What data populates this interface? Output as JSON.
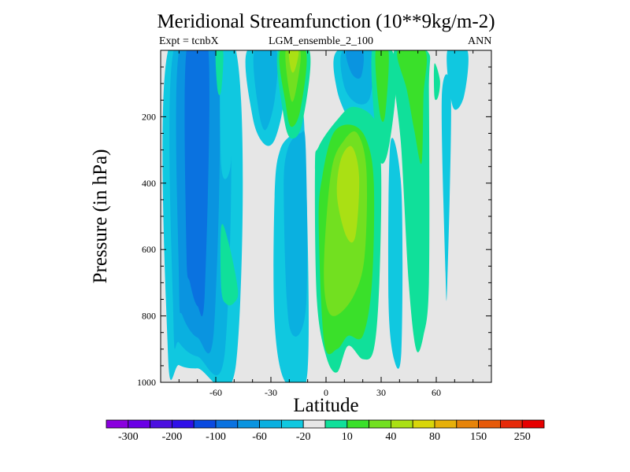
{
  "chart_data": {
    "type": "heatmap",
    "title": "Meridional Streamfunction (10**9kg/m-2)",
    "subtitle_left": "Expt = tcnbX",
    "subtitle_center": "LGM_ensemble_2_100",
    "subtitle_right": "ANN",
    "xlabel": "Latitude",
    "ylabel": "Pressure (in hPa)",
    "xlim": [
      -90,
      90
    ],
    "ylim": [
      1000,
      0
    ],
    "x_ticks": [
      -60,
      -30,
      0,
      30,
      60
    ],
    "y_ticks": [
      200,
      400,
      600,
      800,
      1000
    ],
    "background_color": "#e6e6e6",
    "colorbar": {
      "colors": [
        "#8a00de",
        "#6a00e6",
        "#4c10e0",
        "#2f10e8",
        "#0a4ae0",
        "#0a72e0",
        "#0a94e0",
        "#0ab0e0",
        "#10c8e0",
        "#e6e6e6",
        "#10e09a",
        "#3ae02a",
        "#72e020",
        "#aae014",
        "#d8d60a",
        "#e6b00a",
        "#e6840a",
        "#e65a0a",
        "#e62a0a",
        "#e60000"
      ],
      "tick_labels": [
        "-300",
        "-200",
        "-100",
        "-60",
        "-20",
        "10",
        "40",
        "80",
        "150",
        "250"
      ]
    },
    "contours": [
      {
        "level": "-20",
        "color": "#10c8e0",
        "polygon": [
          [
            -86,
            2
          ],
          [
            -49,
            2
          ],
          [
            -49,
            945
          ],
          [
            -70,
            958
          ],
          [
            -80,
            948
          ],
          [
            -86,
            915
          ]
        ]
      },
      {
        "level": "-60",
        "color": "#0ab0e0",
        "polygon": [
          [
            -83,
            2
          ],
          [
            -54,
            2
          ],
          [
            -55,
            905
          ],
          [
            -70,
            922
          ],
          [
            -80,
            880
          ],
          [
            -83,
            820
          ]
        ]
      },
      {
        "level": "-100",
        "color": "#0a94e0",
        "polygon": [
          [
            -80,
            2
          ],
          [
            -59,
            2
          ],
          [
            -61,
            840
          ],
          [
            -70,
            865
          ],
          [
            -78,
            800
          ],
          [
            -80,
            700
          ]
        ]
      },
      {
        "level": "-150",
        "color": "#0a72e0",
        "polygon": [
          [
            -76,
            2
          ],
          [
            -64,
            2
          ],
          [
            -66,
            730
          ],
          [
            -70,
            770
          ],
          [
            -74,
            700
          ],
          [
            -76,
            600
          ]
        ]
      },
      {
        "level": "-20",
        "color": "#10c8e0",
        "polygon": [
          [
            -50,
            2
          ],
          [
            -57,
            2
          ],
          [
            -57,
            350
          ],
          [
            -52,
            350
          ],
          [
            -50,
            100
          ]
        ]
      },
      {
        "level": "-20",
        "color": "#10c8e0",
        "polygon": [
          [
            -43,
            2
          ],
          [
            -24,
            2
          ],
          [
            -23,
            150
          ],
          [
            -28,
            270
          ],
          [
            -34,
            280
          ],
          [
            -40,
            200
          ]
        ]
      },
      {
        "level": "-60",
        "color": "#0ab0e0",
        "polygon": [
          [
            -39,
            2
          ],
          [
            -27,
            2
          ],
          [
            -28,
            150
          ],
          [
            -33,
            240
          ],
          [
            -37,
            170
          ]
        ]
      },
      {
        "level": "-20",
        "color": "#10c8e0",
        "polygon": [
          [
            -28,
            440
          ],
          [
            -25,
            300
          ],
          [
            -17,
            245
          ],
          [
            -12,
            210
          ],
          [
            -10,
            960
          ],
          [
            -22,
            1000
          ],
          [
            -28,
            820
          ]
        ]
      },
      {
        "level": "-60",
        "color": "#0ab0e0",
        "polygon": [
          [
            -23,
            440
          ],
          [
            -21,
            300
          ],
          [
            -14,
            250
          ],
          [
            -11,
            300
          ],
          [
            -11,
            780
          ],
          [
            -20,
            830
          ]
        ]
      },
      {
        "level": "-20",
        "color": "#10c8e0",
        "polygon": [
          [
            6,
            2
          ],
          [
            28,
            2
          ],
          [
            28,
            180
          ],
          [
            20,
            250
          ],
          [
            14,
            225
          ],
          [
            6,
            120
          ]
        ]
      },
      {
        "level": "-60",
        "color": "#0ab0e0",
        "polygon": [
          [
            9,
            2
          ],
          [
            25,
            2
          ],
          [
            24,
            140
          ],
          [
            17,
            160
          ],
          [
            10,
            110
          ]
        ]
      },
      {
        "level": "-100",
        "color": "#0a94e0",
        "polygon": [
          [
            11,
            2
          ],
          [
            20,
            2
          ],
          [
            19,
            80
          ],
          [
            14,
            70
          ]
        ]
      },
      {
        "level": "-20",
        "color": "#10c8e0",
        "polygon": [
          [
            35,
            280
          ],
          [
            41,
            420
          ],
          [
            41,
            905
          ],
          [
            37,
            930
          ],
          [
            34,
            750
          ]
        ]
      },
      {
        "level": "-20",
        "color": "#10c8e0",
        "polygon": [
          [
            66,
            2
          ],
          [
            77,
            2
          ],
          [
            75,
            140
          ],
          [
            69,
            170
          ]
        ]
      },
      {
        "level": "-20",
        "color": "#10c8e0",
        "polygon": [
          [
            63,
            140
          ],
          [
            68,
            140
          ],
          [
            66,
            700
          ],
          [
            65,
            670
          ]
        ]
      },
      {
        "level": "10",
        "color": "#10e09a",
        "polygon": [
          [
            -57,
            530
          ],
          [
            -53,
            580
          ],
          [
            -48,
            720
          ],
          [
            -50,
            760
          ],
          [
            -54,
            765
          ],
          [
            -57,
            720
          ]
        ]
      },
      {
        "level": "10",
        "color": "#10e09a",
        "polygon": [
          [
            -26,
            2
          ],
          [
            -9,
            2
          ],
          [
            -13,
            220
          ],
          [
            -19,
            265
          ],
          [
            -23,
            200
          ]
        ]
      },
      {
        "level": "10",
        "color": "#10e09a",
        "polygon": [
          [
            25,
            2
          ],
          [
            36,
            2
          ],
          [
            38,
            120
          ],
          [
            33,
            320
          ],
          [
            28,
            300
          ]
        ]
      },
      {
        "level": "10",
        "color": "#10e09a",
        "polygon": [
          [
            37,
            2
          ],
          [
            55,
            2
          ],
          [
            56,
            130
          ],
          [
            56,
            700
          ],
          [
            53,
            860
          ],
          [
            49,
            900
          ],
          [
            45,
            700
          ],
          [
            41,
            300
          ]
        ]
      },
      {
        "level": "10",
        "color": "#10e09a",
        "polygon": [
          [
            -6,
            360
          ],
          [
            -4,
            290
          ],
          [
            6,
            210
          ],
          [
            15,
            170
          ],
          [
            27,
            215
          ],
          [
            30,
            360
          ],
          [
            29,
            700
          ],
          [
            26,
            900
          ],
          [
            20,
            930
          ],
          [
            12,
            890
          ],
          [
            6,
            970
          ],
          [
            0,
            920
          ],
          [
            -5,
            750
          ]
        ]
      },
      {
        "level": "10",
        "color": "#10e09a",
        "polygon": [
          [
            59,
            40
          ],
          [
            62,
            90
          ],
          [
            61,
            140
          ],
          [
            59,
            140
          ]
        ]
      },
      {
        "level": "10",
        "color": "#10e09a",
        "polygon": [
          [
            -60,
            2
          ],
          [
            -56,
            2
          ],
          [
            -57,
            120
          ],
          [
            -59,
            120
          ]
        ]
      },
      {
        "level": "40",
        "color": "#3ae02a",
        "polygon": [
          [
            -4,
            520
          ],
          [
            -2,
            380
          ],
          [
            4,
            250
          ],
          [
            14,
            225
          ],
          [
            22,
            270
          ],
          [
            26,
            400
          ],
          [
            25,
            700
          ],
          [
            20,
            860
          ],
          [
            12,
            860
          ],
          [
            6,
            900
          ],
          [
            -1,
            880
          ]
        ]
      },
      {
        "level": "40",
        "color": "#3ae02a",
        "polygon": [
          [
            -25,
            2
          ],
          [
            -11,
            2
          ],
          [
            -14,
            180
          ],
          [
            -19,
            230
          ],
          [
            -22,
            160
          ]
        ]
      },
      {
        "level": "40",
        "color": "#3ae02a",
        "polygon": [
          [
            27,
            2
          ],
          [
            34,
            2
          ],
          [
            32,
            200
          ],
          [
            29,
            180
          ]
        ]
      },
      {
        "level": "40",
        "color": "#3ae02a",
        "polygon": [
          [
            39,
            2
          ],
          [
            54,
            2
          ],
          [
            53,
            140
          ],
          [
            52,
            340
          ],
          [
            48,
            240
          ],
          [
            44,
            120
          ]
        ]
      },
      {
        "level": "80",
        "color": "#72e020",
        "polygon": [
          [
            -1,
            620
          ],
          [
            3,
            360
          ],
          [
            10,
            270
          ],
          [
            17,
            250
          ],
          [
            22,
            360
          ],
          [
            21,
            620
          ],
          [
            15,
            740
          ],
          [
            5,
            800
          ],
          [
            0,
            760
          ]
        ]
      },
      {
        "level": "80",
        "color": "#72e020",
        "polygon": [
          [
            -22,
            2
          ],
          [
            -14,
            2
          ],
          [
            -16,
            110
          ],
          [
            -19,
            150
          ]
        ]
      },
      {
        "level": "150",
        "color": "#aae014",
        "polygon": [
          [
            6,
            440
          ],
          [
            8,
            330
          ],
          [
            14,
            290
          ],
          [
            18,
            380
          ],
          [
            16,
            560
          ],
          [
            11,
            560
          ]
        ]
      },
      {
        "level": "150",
        "color": "#aae014",
        "polygon": [
          [
            -20,
            2
          ],
          [
            -15,
            2
          ],
          [
            -17,
            60
          ],
          [
            -19,
            60
          ]
        ]
      }
    ]
  }
}
